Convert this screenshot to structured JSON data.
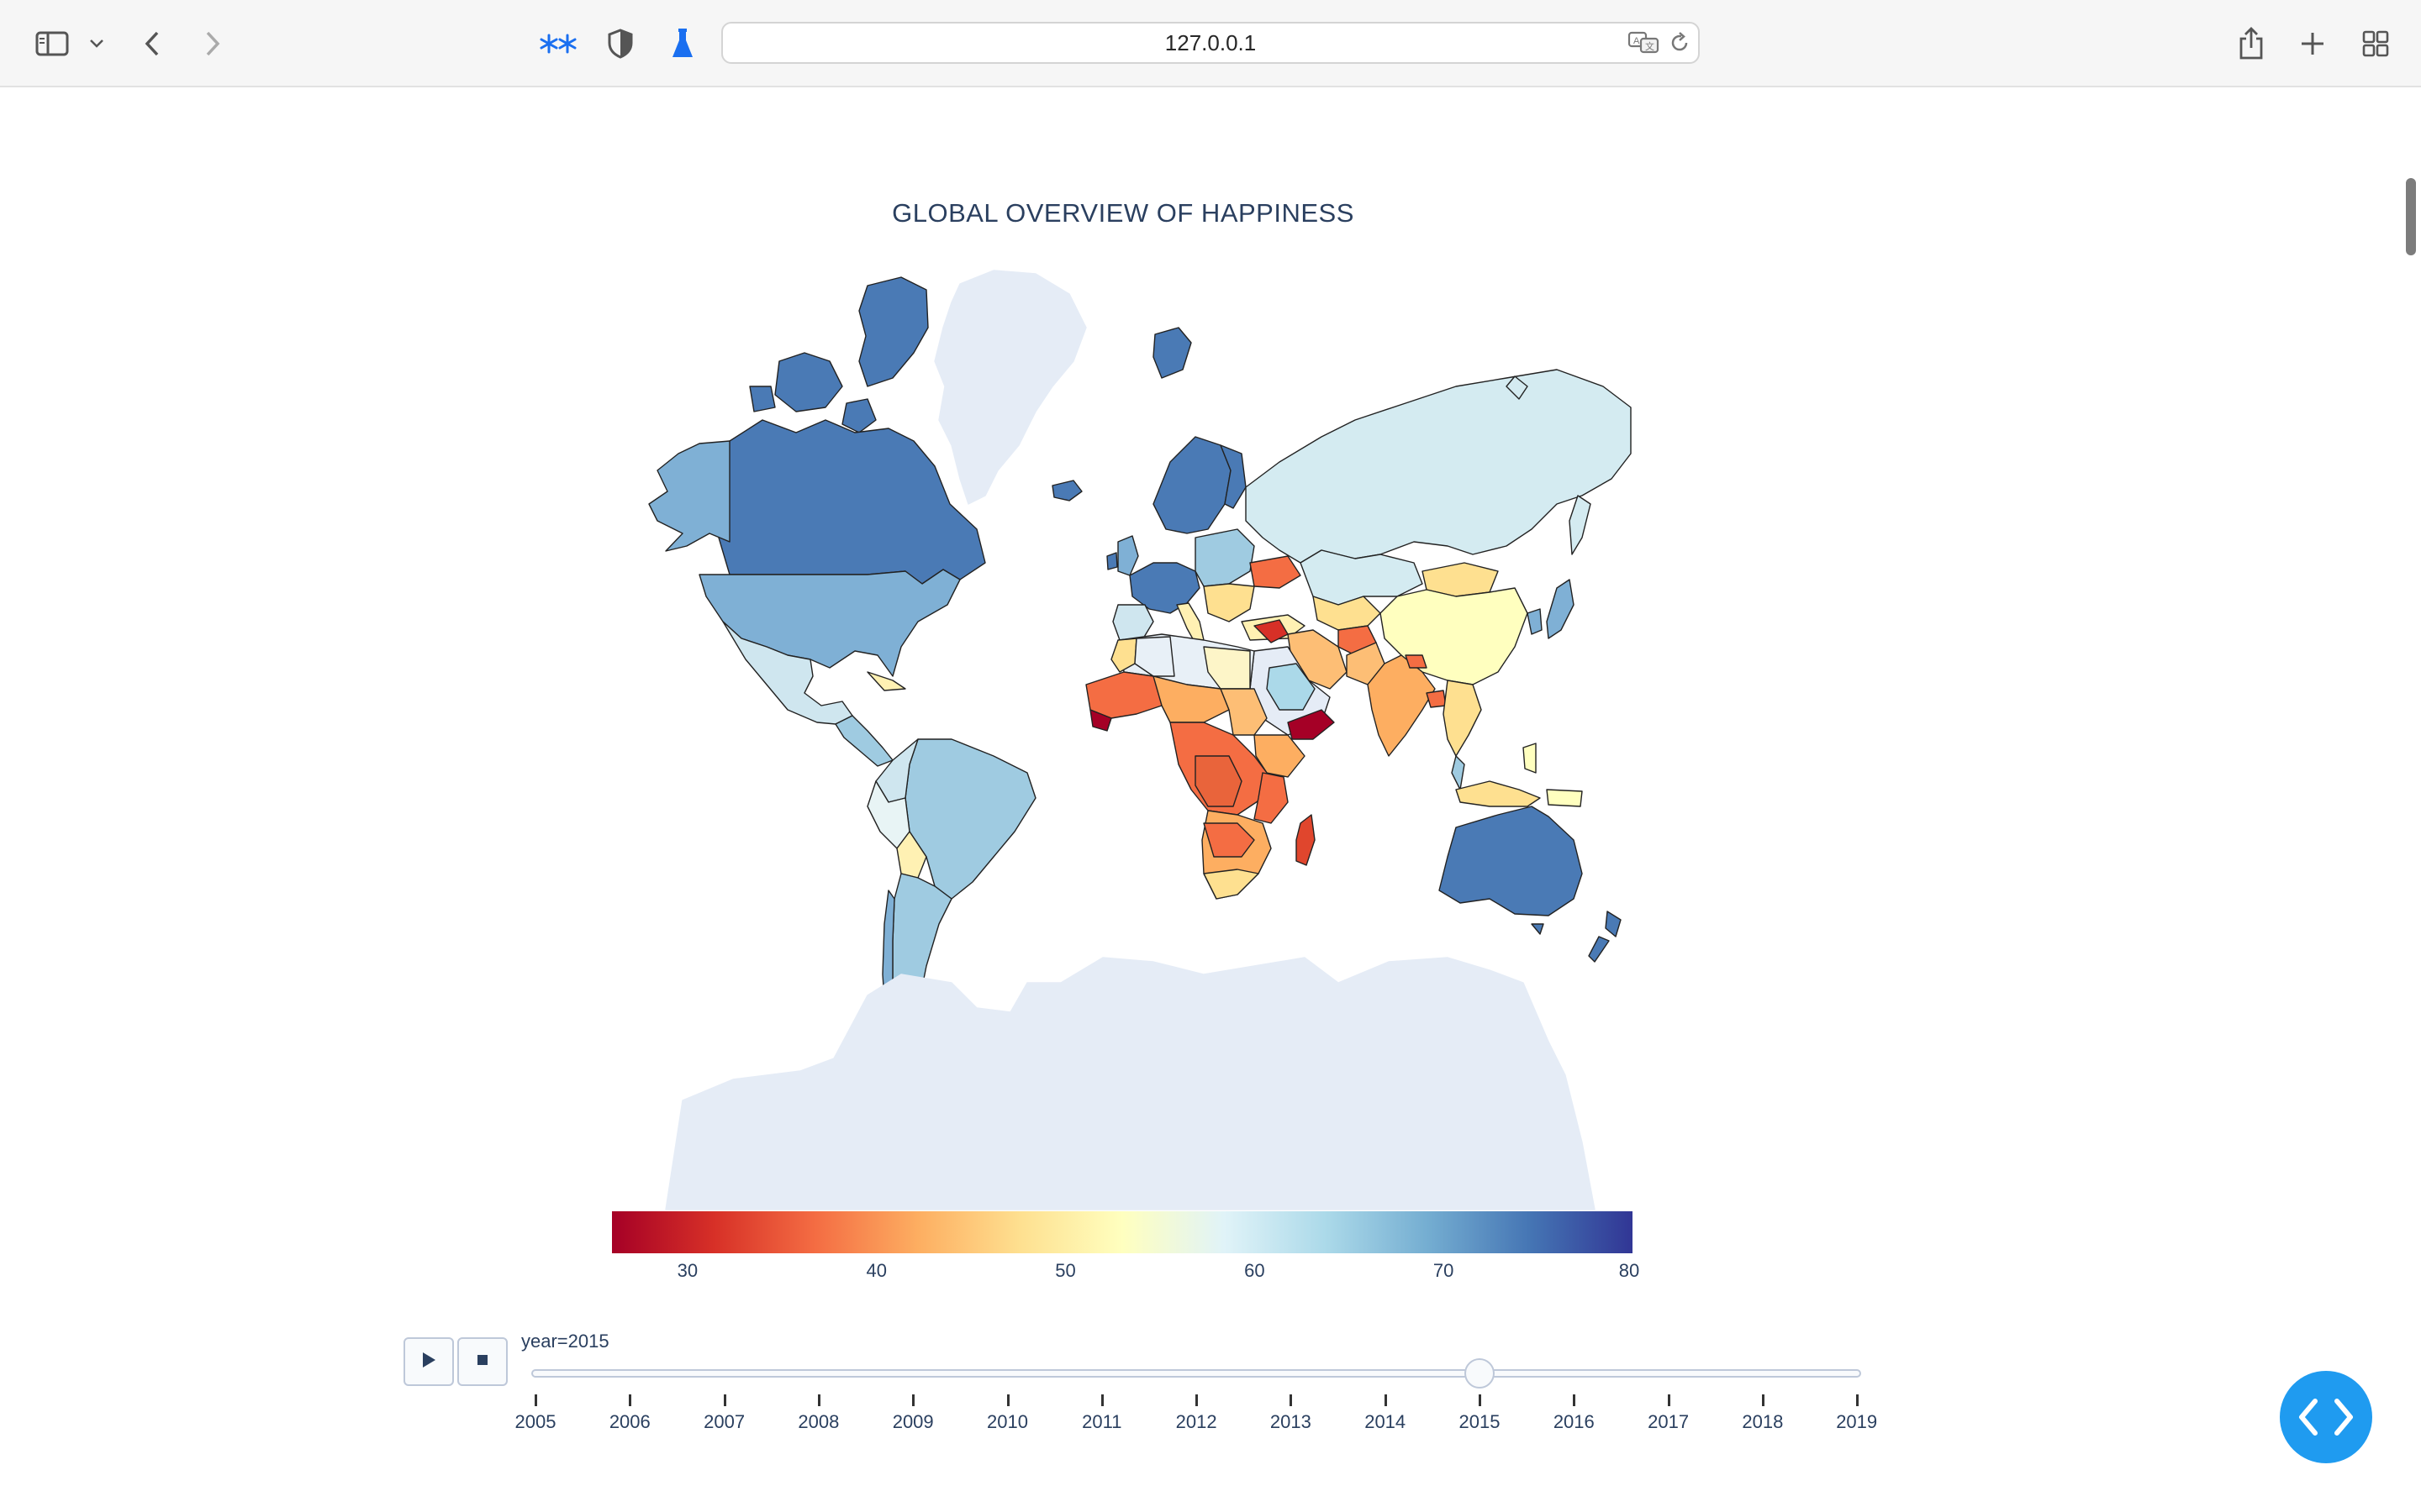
{
  "browser": {
    "url": "127.0.0.1",
    "icons": {
      "sidebar": "sidebar-icon",
      "sidebar_menu": "chevron-down-icon",
      "back": "chevron-left-icon",
      "forward": "chevron-right-icon",
      "extension_1": "stars-extension-icon",
      "extension_2": "shield-icon",
      "extension_3": "flask-icon",
      "translate": "translate-icon",
      "reload": "reload-icon",
      "share": "share-icon",
      "new_tab": "plus-icon",
      "tab_overview": "grid-icon"
    },
    "accent": "#1a6ff0"
  },
  "page": {
    "floating_button_icon": "code-brackets-icon",
    "floating_button_color": "#1f9bf0"
  },
  "chart_data": {
    "type": "choropleth",
    "title": "GLOBAL OVERVIEW OF HAPPINESS",
    "colorscale": "RdYlBu",
    "colorbar": {
      "tick_labels": [
        "30",
        "40",
        "50",
        "60",
        "70",
        "80"
      ],
      "min": 26,
      "max": 80,
      "colors": [
        "#a50026",
        "#d73027",
        "#f46d43",
        "#fdae61",
        "#fee090",
        "#ffffbf",
        "#e0f3f8",
        "#abd9e9",
        "#74add1",
        "#4575b4",
        "#313695"
      ]
    },
    "no_data_color": "#e5ecf6",
    "regions": [
      {
        "region": "Canada",
        "level": "high"
      },
      {
        "region": "Greenland",
        "level": "no data"
      },
      {
        "region": "Alaska / United States",
        "level": "upper-mid"
      },
      {
        "region": "Mexico",
        "level": "mid-high"
      },
      {
        "region": "South America",
        "level": "mid-high"
      },
      {
        "region": "Scandinavia",
        "level": "high"
      },
      {
        "region": "Western Europe",
        "level": "high"
      },
      {
        "region": "Russia",
        "level": "mid"
      },
      {
        "region": "China",
        "level": "mid-low"
      },
      {
        "region": "India",
        "level": "low-mid"
      },
      {
        "region": "Central Africa",
        "level": "low"
      },
      {
        "region": "Yemen",
        "level": "very low"
      },
      {
        "region": "Madagascar",
        "level": "low"
      },
      {
        "region": "Australia",
        "level": "high"
      },
      {
        "region": "New Zealand",
        "level": "high"
      },
      {
        "region": "Antarctica",
        "level": "no data"
      }
    ],
    "slider": {
      "label": "year=2015",
      "current": 2015,
      "years": [
        "2005",
        "2006",
        "2007",
        "2008",
        "2009",
        "2010",
        "2011",
        "2012",
        "2013",
        "2014",
        "2015",
        "2016",
        "2017",
        "2018",
        "2019"
      ],
      "play_icon": "play-icon",
      "stop_icon": "stop-icon"
    }
  }
}
